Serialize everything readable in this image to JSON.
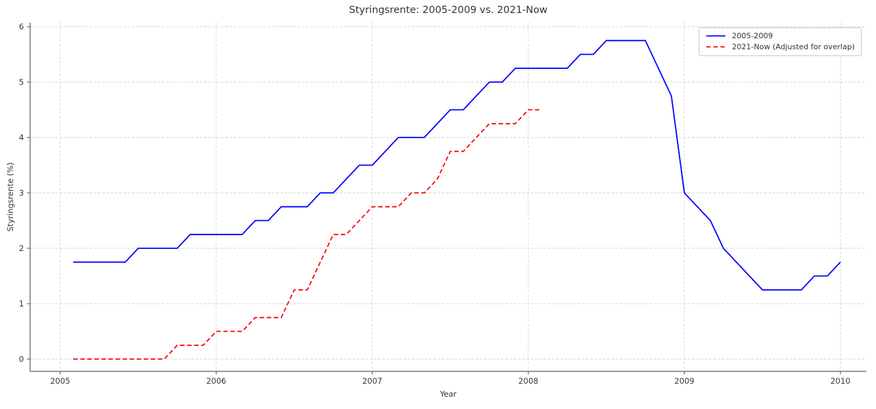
{
  "title": "Styringsrente: 2005-2009 vs. 2021-Now",
  "axes": {
    "x_label": "Year",
    "y_label": "Styringsrente (%)",
    "x_ticks": [
      "2005",
      "2006",
      "2007",
      "2008",
      "2009",
      "2010"
    ],
    "x_tick_values": [
      2005,
      2006,
      2007,
      2008,
      2009,
      2010
    ],
    "y_ticks": [
      "0",
      "1",
      "2",
      "3",
      "4",
      "5",
      "6"
    ],
    "y_tick_values": [
      0,
      1,
      2,
      3,
      4,
      5,
      6
    ],
    "grid": "dashed light gray, both axes",
    "spines": "left and bottom only"
  },
  "legend": {
    "position": "upper right",
    "entries": [
      {
        "label": "2005-2009",
        "color": "#0000ff",
        "linestyle": "solid"
      },
      {
        "label": "2021-Now (Adjusted for overlap)",
        "color": "#ff0000",
        "linestyle": "dashed"
      }
    ]
  },
  "colors": {
    "series1": "#0000ff",
    "series2": "#ff0000",
    "grid": "#d2d2d2",
    "spine": "#5a5a5a",
    "text": "#363636",
    "background": "#ffffff"
  },
  "chart_data": {
    "type": "line",
    "title": "Styringsrente: 2005-2009 vs. 2021-Now",
    "xlabel": "Year",
    "ylabel": "Styringsrente (%)",
    "xlim": [
      2004.81,
      2010.17
    ],
    "ylim": [
      -0.22,
      6.07
    ],
    "frequency": "monthly",
    "x_start_month": "2005-01",
    "series": [
      {
        "name": "2005-2009",
        "color": "#0000ff",
        "linestyle": "solid",
        "start": "2005-01",
        "values": [
          1.75,
          1.75,
          1.75,
          1.75,
          1.75,
          2.0,
          2.0,
          2.0,
          2.0,
          2.25,
          2.25,
          2.25,
          2.25,
          2.25,
          2.5,
          2.5,
          2.75,
          2.75,
          2.75,
          3.0,
          3.0,
          3.25,
          3.5,
          3.5,
          3.75,
          4.0,
          4.0,
          4.0,
          4.25,
          4.5,
          4.5,
          4.75,
          5.0,
          5.0,
          5.25,
          5.25,
          5.25,
          5.25,
          5.25,
          5.5,
          5.5,
          5.75,
          5.75,
          5.75,
          5.75,
          5.25,
          4.75,
          3.0,
          2.75,
          2.5,
          2.0,
          1.75,
          1.5,
          1.25,
          1.25,
          1.25,
          1.25,
          1.5,
          1.5,
          1.75
        ]
      },
      {
        "name": "2021-Now (Adjusted for overlap)",
        "color": "#ff0000",
        "linestyle": "dashed",
        "start": "2005-01",
        "values": [
          0.0,
          0.0,
          0.0,
          0.0,
          0.0,
          0.0,
          0.0,
          0.0,
          0.25,
          0.25,
          0.25,
          0.5,
          0.5,
          0.5,
          0.75,
          0.75,
          0.75,
          1.25,
          1.25,
          1.75,
          2.25,
          2.25,
          2.5,
          2.75,
          2.75,
          2.75,
          3.0,
          3.0,
          3.25,
          3.75,
          3.75,
          4.0,
          4.25,
          4.25,
          4.25,
          4.5,
          4.5
        ]
      }
    ]
  }
}
